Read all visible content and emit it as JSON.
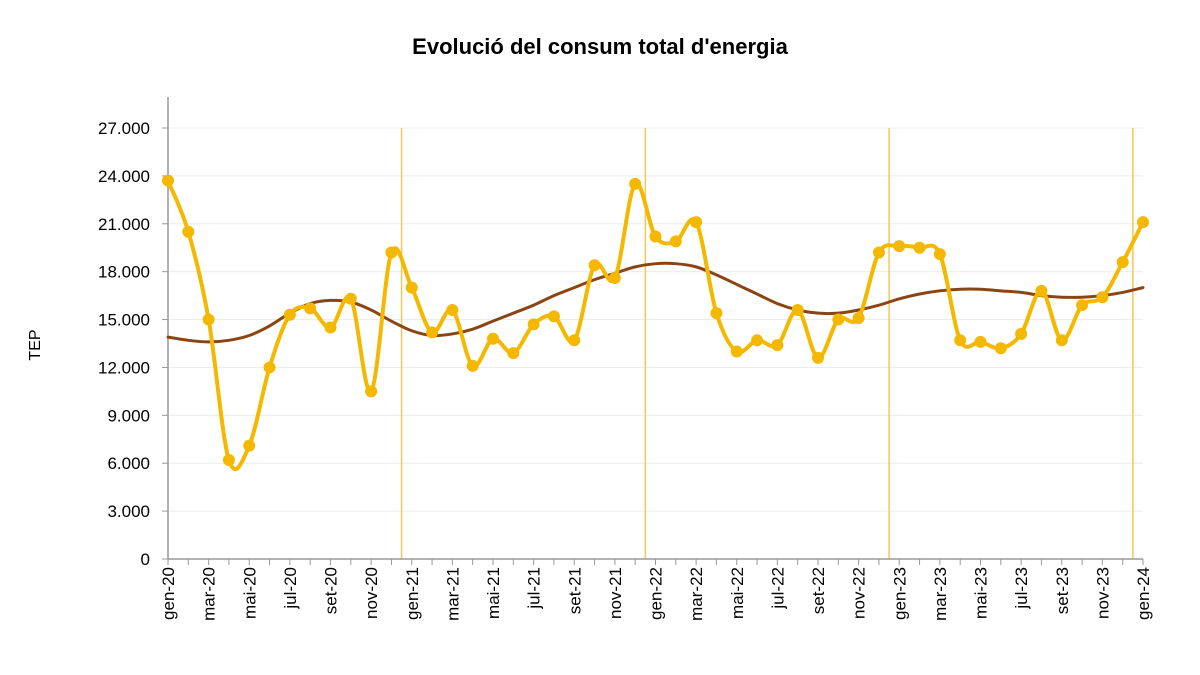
{
  "chart_data": {
    "type": "line",
    "title": "Evolució del consum total d'energia",
    "xlabel": "",
    "ylabel": "TEP",
    "ylim": [
      0,
      27000
    ],
    "yticks": [
      "0",
      "3.000",
      "6.000",
      "9.000",
      "12.000",
      "15.000",
      "18.000",
      "21.000",
      "24.000",
      "27.000"
    ],
    "x_tick_labels": [
      "gen-20",
      "mar-20",
      "mai-20",
      "jul-20",
      "set-20",
      "nov-20",
      "gen-21",
      "mar-21",
      "mai-21",
      "jul-21",
      "set-21",
      "nov-21",
      "gen-22",
      "mar-22",
      "mai-22",
      "jul-22",
      "set-22",
      "nov-22",
      "gen-23",
      "mar-23",
      "mai-23",
      "jul-23",
      "set-23",
      "nov-23",
      "gen-24"
    ],
    "categories": [
      "gen-20",
      "feb-20",
      "mar-20",
      "abr-20",
      "mai-20",
      "jun-20",
      "jul-20",
      "ago-20",
      "set-20",
      "oct-20",
      "nov-20",
      "des-20",
      "gen-21",
      "feb-21",
      "mar-21",
      "abr-21",
      "mai-21",
      "jun-21",
      "jul-21",
      "ago-21",
      "set-21",
      "oct-21",
      "nov-21",
      "des-21",
      "gen-22",
      "feb-22",
      "mar-22",
      "abr-22",
      "mai-22",
      "jun-22",
      "jul-22",
      "ago-22",
      "set-22",
      "oct-22",
      "nov-22",
      "des-22",
      "gen-23",
      "feb-23",
      "mar-23",
      "abr-23",
      "mai-23",
      "jun-23",
      "jul-23",
      "ago-23",
      "set-23",
      "oct-23",
      "nov-23",
      "des-23",
      "gen-24"
    ],
    "year_separators_after": [
      "des-20",
      "des-21",
      "des-22",
      "des-23"
    ],
    "grid": true,
    "series": [
      {
        "color": "#f5b800",
        "markers": true,
        "values": [
          23700,
          20500,
          15000,
          6200,
          7100,
          12000,
          15300,
          15700,
          14500,
          16300,
          10500,
          19200,
          17000,
          14200,
          15600,
          12100,
          13800,
          12900,
          14700,
          15200,
          13700,
          18400,
          17600,
          23500,
          20200,
          19900,
          21100,
          15400,
          13000,
          13700,
          13400,
          15600,
          12600,
          15000,
          15100,
          19200,
          19600,
          19500,
          19100,
          13700,
          13600,
          13200,
          14100,
          16800,
          13700,
          15900,
          16400,
          18600,
          21100
        ]
      },
      {
        "color": "#8b4513",
        "markers": false,
        "values": [
          13900,
          13700,
          13600,
          13700,
          14000,
          14600,
          15400,
          16000,
          16200,
          16100,
          15600,
          14900,
          14300,
          14000,
          14100,
          14400,
          14900,
          15400,
          15900,
          16500,
          17000,
          17500,
          17900,
          18300,
          18500,
          18500,
          18300,
          17800,
          17200,
          16600,
          16000,
          15600,
          15400,
          15400,
          15600,
          15900,
          16300,
          16600,
          16800,
          16900,
          16900,
          16800,
          16700,
          16500,
          16400,
          16400,
          16500,
          16700,
          17000
        ]
      }
    ]
  }
}
